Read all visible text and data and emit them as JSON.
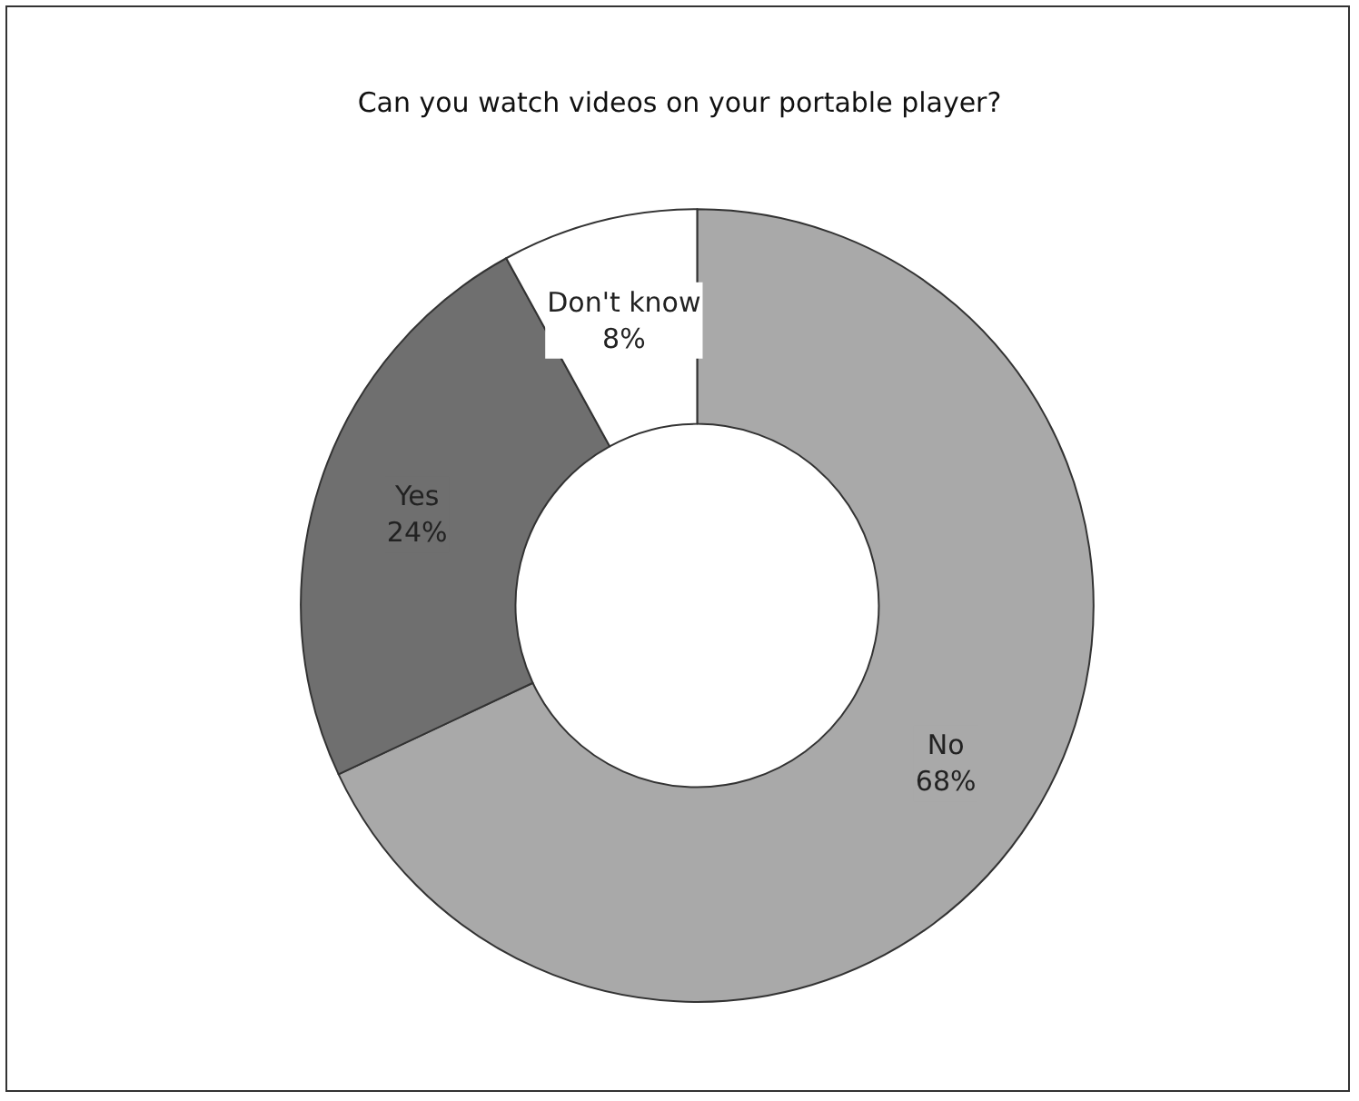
{
  "chart_data": {
    "type": "donut",
    "title": "Can you watch videos on your portable player?",
    "categories": [
      "No",
      "Yes",
      "Don't know"
    ],
    "values": [
      68,
      24,
      8
    ],
    "value_labels": [
      "68%",
      "24%",
      "8%"
    ],
    "colors": [
      "#a9a9a9",
      "#6f6f6f",
      "#ffffff"
    ],
    "legend": false
  }
}
